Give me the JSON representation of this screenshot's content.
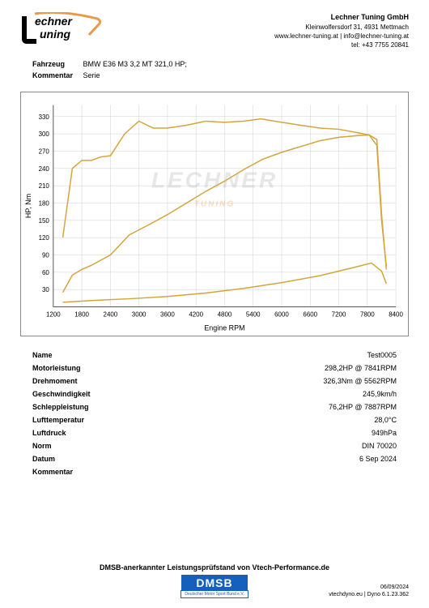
{
  "company": {
    "name": "Lechner Tuning GmbH",
    "address": "Kleinwolfersdorf 31, 4931 Mettmach",
    "web": "www.lechner-tuning.at | info@lechner-tuning.at",
    "phone": "tel: +43 7755 20841"
  },
  "logo": {
    "text_top": "echner",
    "text_bottom": "uning",
    "accent_color": "#e89a4a",
    "text_color": "#000000"
  },
  "vehicle": {
    "label": "Fahrzeug",
    "value": "BMW E36 M3 3,2 MT 321,0 HP;"
  },
  "comment": {
    "label": "Kommentar",
    "value": "Serie"
  },
  "chart": {
    "type": "line",
    "background_color": "#ffffff",
    "grid_color": "#d0d0d0",
    "border_color": "#888888",
    "line_color": "#d4a53a",
    "line_width": 1.5,
    "xlabel": "Engine RPM",
    "ylabel": "HP, Nm",
    "label_fontsize": 9,
    "tick_fontsize": 8,
    "xlim": [
      1200,
      8400
    ],
    "ylim": [
      0,
      350
    ],
    "xtick_step": 600,
    "ytick_step": 30,
    "xticks": [
      1200,
      1800,
      2400,
      3000,
      3600,
      4200,
      4800,
      5400,
      6000,
      6600,
      7200,
      7800,
      8400
    ],
    "yticks": [
      30,
      60,
      90,
      120,
      150,
      180,
      210,
      240,
      270,
      300,
      330
    ],
    "series": {
      "torque": {
        "rpm": [
          1400,
          1600,
          1800,
          2000,
          2200,
          2400,
          2700,
          3000,
          3300,
          3600,
          4000,
          4400,
          4800,
          5200,
          5562,
          6000,
          6400,
          6800,
          7200,
          7600,
          7841,
          8000,
          8100,
          8200
        ],
        "values": [
          120,
          240,
          254,
          254,
          260,
          262,
          300,
          322,
          310,
          310,
          315,
          322,
          320,
          322,
          326,
          320,
          315,
          310,
          308,
          302,
          298,
          280,
          150,
          70
        ]
      },
      "power": {
        "rpm": [
          1400,
          1600,
          1800,
          2000,
          2400,
          2800,
          3200,
          3600,
          4000,
          4400,
          4800,
          5200,
          5600,
          6000,
          6400,
          6800,
          7200,
          7600,
          7841,
          8000,
          8100,
          8200
        ],
        "values": [
          25,
          55,
          65,
          72,
          90,
          125,
          142,
          160,
          180,
          200,
          218,
          238,
          256,
          268,
          278,
          288,
          294,
          297,
          298,
          290,
          160,
          65
        ]
      },
      "drag": {
        "rpm": [
          1400,
          2000,
          2800,
          3600,
          4400,
          5200,
          6000,
          6800,
          7600,
          7887,
          8100,
          8200
        ],
        "values": [
          8,
          11,
          14,
          18,
          24,
          32,
          42,
          54,
          70,
          76,
          62,
          40
        ]
      }
    },
    "watermark": {
      "main": "LECHNER",
      "sub": "TUNING"
    }
  },
  "results": [
    {
      "label": "Name",
      "value": "Test0005"
    },
    {
      "label": "Motorleistung",
      "value": "298,2HP @ 7841RPM"
    },
    {
      "label": "Drehmoment",
      "value": "326,3Nm @ 5562RPM"
    },
    {
      "label": "Geschwindigkeit",
      "value": "245,9km/h"
    },
    {
      "label": "Schleppleistung",
      "value": "76,2HP @ 7887RPM"
    },
    {
      "label": "Lufttemperatur",
      "value": "28,0°C"
    },
    {
      "label": "Luftdruck",
      "value": "949hPa"
    },
    {
      "label": "Norm",
      "value": "DIN 70020"
    },
    {
      "label": "Datum",
      "value": "6 Sep 2024"
    },
    {
      "label": "Kommentar",
      "value": ""
    }
  ],
  "footer": {
    "title": "DMSB-anerkannter Leistungsprüfstand von Vtech-Performance.de",
    "dmsb": "DMSB",
    "dmsb_sub": "Deutscher Motor Sport Bund e.V.",
    "date": "06/09/2024",
    "version": "vtechdyno.eu | Dyno 6.1.23.362"
  }
}
